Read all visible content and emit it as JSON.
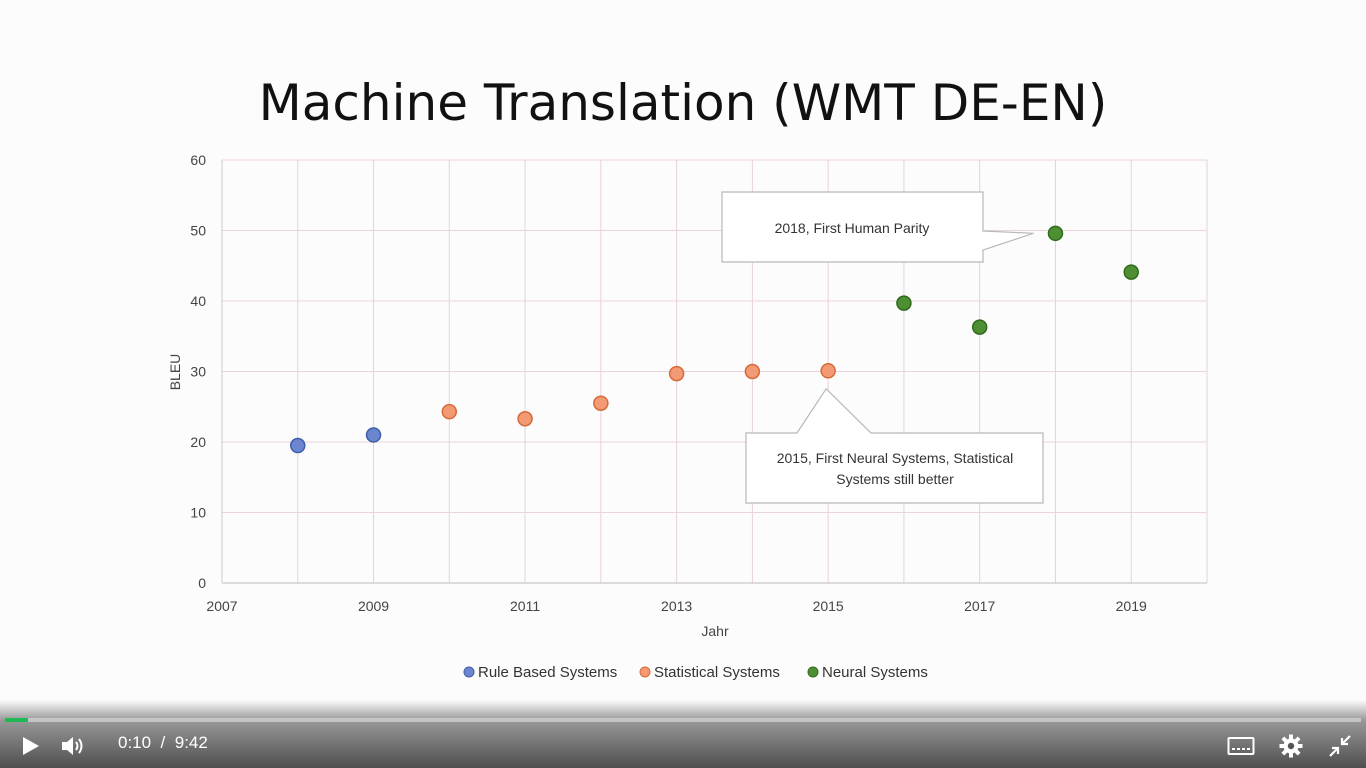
{
  "slide": {
    "title": "Machine Translation (WMT DE-EN)"
  },
  "chart_data": {
    "type": "scatter",
    "xlabel": "Jahr",
    "ylabel": "BLEU",
    "xlim": [
      2007,
      2020
    ],
    "ylim": [
      0,
      60
    ],
    "x_ticks": [
      "2007",
      "2009",
      "2011",
      "2013",
      "2015",
      "2017",
      "2019"
    ],
    "y_ticks": [
      "0",
      "10",
      "20",
      "30",
      "40",
      "50",
      "60"
    ],
    "grid": true,
    "legend_position": "bottom",
    "series": [
      {
        "name": "Rule Based Systems",
        "color": "#6b86cf",
        "stroke": "#3f5ea8",
        "points": [
          {
            "x": 2008,
            "y": 19.5
          },
          {
            "x": 2009,
            "y": 21.0
          }
        ]
      },
      {
        "name": "Statistical Systems",
        "color": "#f19a73",
        "stroke": "#d66a3c",
        "points": [
          {
            "x": 2010,
            "y": 24.3
          },
          {
            "x": 2011,
            "y": 23.3
          },
          {
            "x": 2012,
            "y": 25.5
          },
          {
            "x": 2013,
            "y": 29.7
          },
          {
            "x": 2014,
            "y": 30.0
          },
          {
            "x": 2015,
            "y": 30.1
          }
        ]
      },
      {
        "name": "Neural Systems",
        "color": "#4f8f33",
        "stroke": "#2f6a1d",
        "points": [
          {
            "x": 2016,
            "y": 39.7
          },
          {
            "x": 2017,
            "y": 36.3
          },
          {
            "x": 2018,
            "y": 49.6
          },
          {
            "x": 2019,
            "y": 44.1
          }
        ]
      }
    ],
    "annotations": [
      {
        "lines": [
          "2018, First Human Parity"
        ],
        "target": {
          "x": 2018,
          "y": 49.6
        }
      },
      {
        "lines": [
          "2015, First Neural Systems, Statistical",
          "Systems still better"
        ],
        "target": {
          "x": 2015,
          "y": 30.1
        }
      }
    ]
  },
  "player": {
    "current_time": "0:10",
    "separator": "/",
    "duration": "9:42",
    "progress_fraction": 0.0172,
    "accent_color": "#1db954",
    "icons": [
      "play-icon",
      "volume-icon",
      "captions-icon",
      "settings-gear-icon",
      "exit-fullscreen-icon"
    ]
  }
}
